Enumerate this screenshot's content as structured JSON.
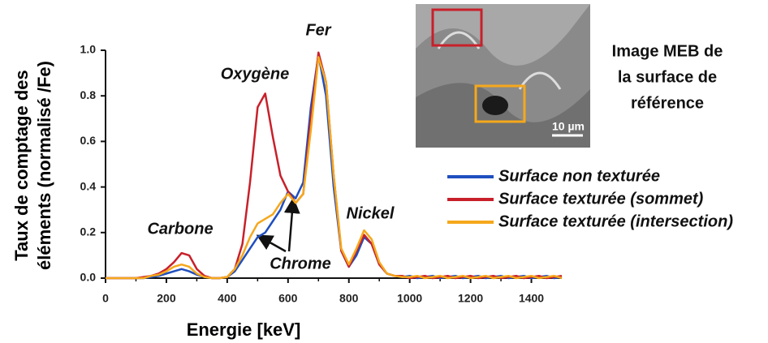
{
  "chart_data": {
    "type": "line",
    "x_label": "Energie [keV]",
    "y_label": [
      "Taux de comptage des",
      "éléments (normalisé /Fe)"
    ],
    "annotations": [
      "Carbone",
      "Oxygène",
      "Fer",
      "Nickel",
      "Chrome"
    ],
    "image_caption": [
      "Image MEB de",
      "la surface de",
      "référence"
    ],
    "image_scale_label": "10 µm",
    "xlim": [
      0,
      1500
    ],
    "xticks": [
      0,
      200,
      400,
      600,
      800,
      1000,
      1200,
      1400
    ],
    "ylim": [
      0,
      1.0
    ],
    "yticks": [
      {
        "value": 0,
        "label": "0.0"
      },
      0.2,
      0.4,
      0.6,
      0.8,
      {
        "value": 1,
        "label": "1.0"
      }
    ],
    "x": [
      0,
      25,
      50,
      75,
      100,
      125,
      150,
      175,
      200,
      225,
      250,
      275,
      300,
      325,
      350,
      375,
      400,
      425,
      450,
      475,
      500,
      525,
      550,
      575,
      600,
      625,
      650,
      675,
      700,
      725,
      750,
      775,
      800,
      825,
      850,
      875,
      900,
      925,
      950,
      975,
      1000,
      1025,
      1050,
      1075,
      1100,
      1125,
      1150,
      1175,
      1200,
      1225,
      1250,
      1275,
      1300,
      1325,
      1350,
      1375,
      1400,
      1425,
      1450,
      1475,
      1500
    ],
    "series": [
      {
        "name": "Surface non texturée",
        "color": "#1f4fbf",
        "values": [
          0,
          0,
          0,
          0,
          0,
          0,
          0.005,
          0.01,
          0.02,
          0.03,
          0.04,
          0.03,
          0.015,
          0.005,
          0,
          0,
          0.005,
          0.03,
          0.08,
          0.13,
          0.18,
          0.2,
          0.25,
          0.3,
          0.38,
          0.35,
          0.42,
          0.75,
          0.98,
          0.8,
          0.4,
          0.12,
          0.05,
          0.1,
          0.18,
          0.15,
          0.06,
          0.02,
          0.01,
          0.005,
          0.01,
          0,
          0.005,
          0.01,
          0,
          0.005,
          0.01,
          0,
          0.005,
          0.01,
          0,
          0.005,
          0.01,
          0,
          0.005,
          0.01,
          0,
          0.005,
          0.01,
          0,
          0.005
        ]
      },
      {
        "name": "Surface texturée (sommet)",
        "color": "#c8202a",
        "values": [
          0,
          0,
          0,
          0,
          0,
          0.005,
          0.01,
          0.02,
          0.04,
          0.07,
          0.11,
          0.1,
          0.04,
          0.01,
          0,
          0,
          0.005,
          0.04,
          0.15,
          0.42,
          0.75,
          0.81,
          0.62,
          0.45,
          0.38,
          0.33,
          0.37,
          0.7,
          0.99,
          0.86,
          0.45,
          0.12,
          0.05,
          0.12,
          0.19,
          0.15,
          0.06,
          0.02,
          0.01,
          0.01,
          0,
          0.005,
          0.01,
          0,
          0.005,
          0.01,
          0,
          0.005,
          0.01,
          0,
          0.005,
          0.01,
          0,
          0.005,
          0.01,
          0,
          0.005,
          0.01,
          0,
          0.005,
          0.01
        ]
      },
      {
        "name": "Surface texturée (intersection)",
        "color": "#f5a81c",
        "values": [
          0,
          0,
          0,
          0,
          0,
          0,
          0.01,
          0.015,
          0.03,
          0.05,
          0.06,
          0.05,
          0.02,
          0.005,
          0,
          0,
          0.005,
          0.04,
          0.1,
          0.18,
          0.24,
          0.26,
          0.28,
          0.33,
          0.37,
          0.33,
          0.37,
          0.65,
          0.97,
          0.86,
          0.45,
          0.13,
          0.06,
          0.13,
          0.21,
          0.17,
          0.07,
          0.02,
          0.01,
          0.005,
          0.005,
          0.01,
          0,
          0.005,
          0.01,
          0,
          0.005,
          0.01,
          0,
          0.005,
          0.01,
          0,
          0.005,
          0.01,
          0,
          0.005,
          0.01,
          0,
          0.005,
          0.01,
          0
        ]
      }
    ]
  }
}
